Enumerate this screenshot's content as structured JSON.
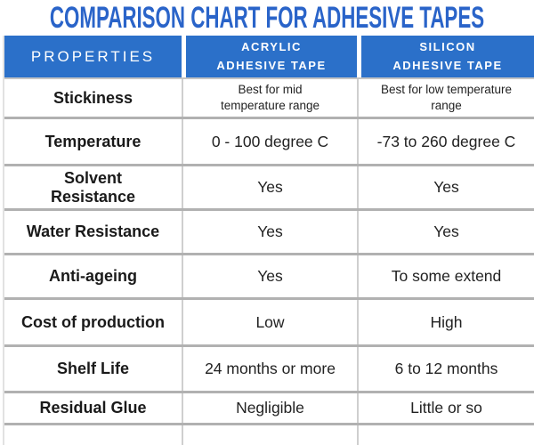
{
  "title": "COMPARISON CHART FOR ADHESIVE TAPES",
  "colors": {
    "title_blue": "#2A64C9",
    "header_blue": "#2B70C9",
    "row_border_gray": "#b1b1b1",
    "column_border_gray": "#cfcfcf",
    "text_dark": "#1a1a1a"
  },
  "table": {
    "header": {
      "properties": "PROPERTIES",
      "acrylic": "ACRYLIC\nADHESIVE TAPE",
      "silicon": "SILICON\nADHESIVE TAPE"
    },
    "rows": [
      {
        "property": "Stickiness",
        "acrylic": "Best for mid\ntemperature range",
        "silicon": "Best for low temperature\nrange"
      },
      {
        "property": "Temperature",
        "acrylic": "0 - 100 degree C",
        "silicon": "-73 to 260 degree C"
      },
      {
        "property": "Solvent\nResistance",
        "acrylic": "Yes",
        "silicon": "Yes"
      },
      {
        "property": "Water Resistance",
        "acrylic": "Yes",
        "silicon": "Yes"
      },
      {
        "property": "Anti-ageing",
        "acrylic": "Yes",
        "silicon": "To some extend"
      },
      {
        "property": "Cost of production",
        "acrylic": "Low",
        "silicon": "High"
      },
      {
        "property": "Shelf Life",
        "acrylic": "24 months or more",
        "silicon": "6 to 12 months"
      },
      {
        "property": "Residual Glue",
        "acrylic": "Negligible",
        "silicon": "Little or so"
      }
    ]
  }
}
